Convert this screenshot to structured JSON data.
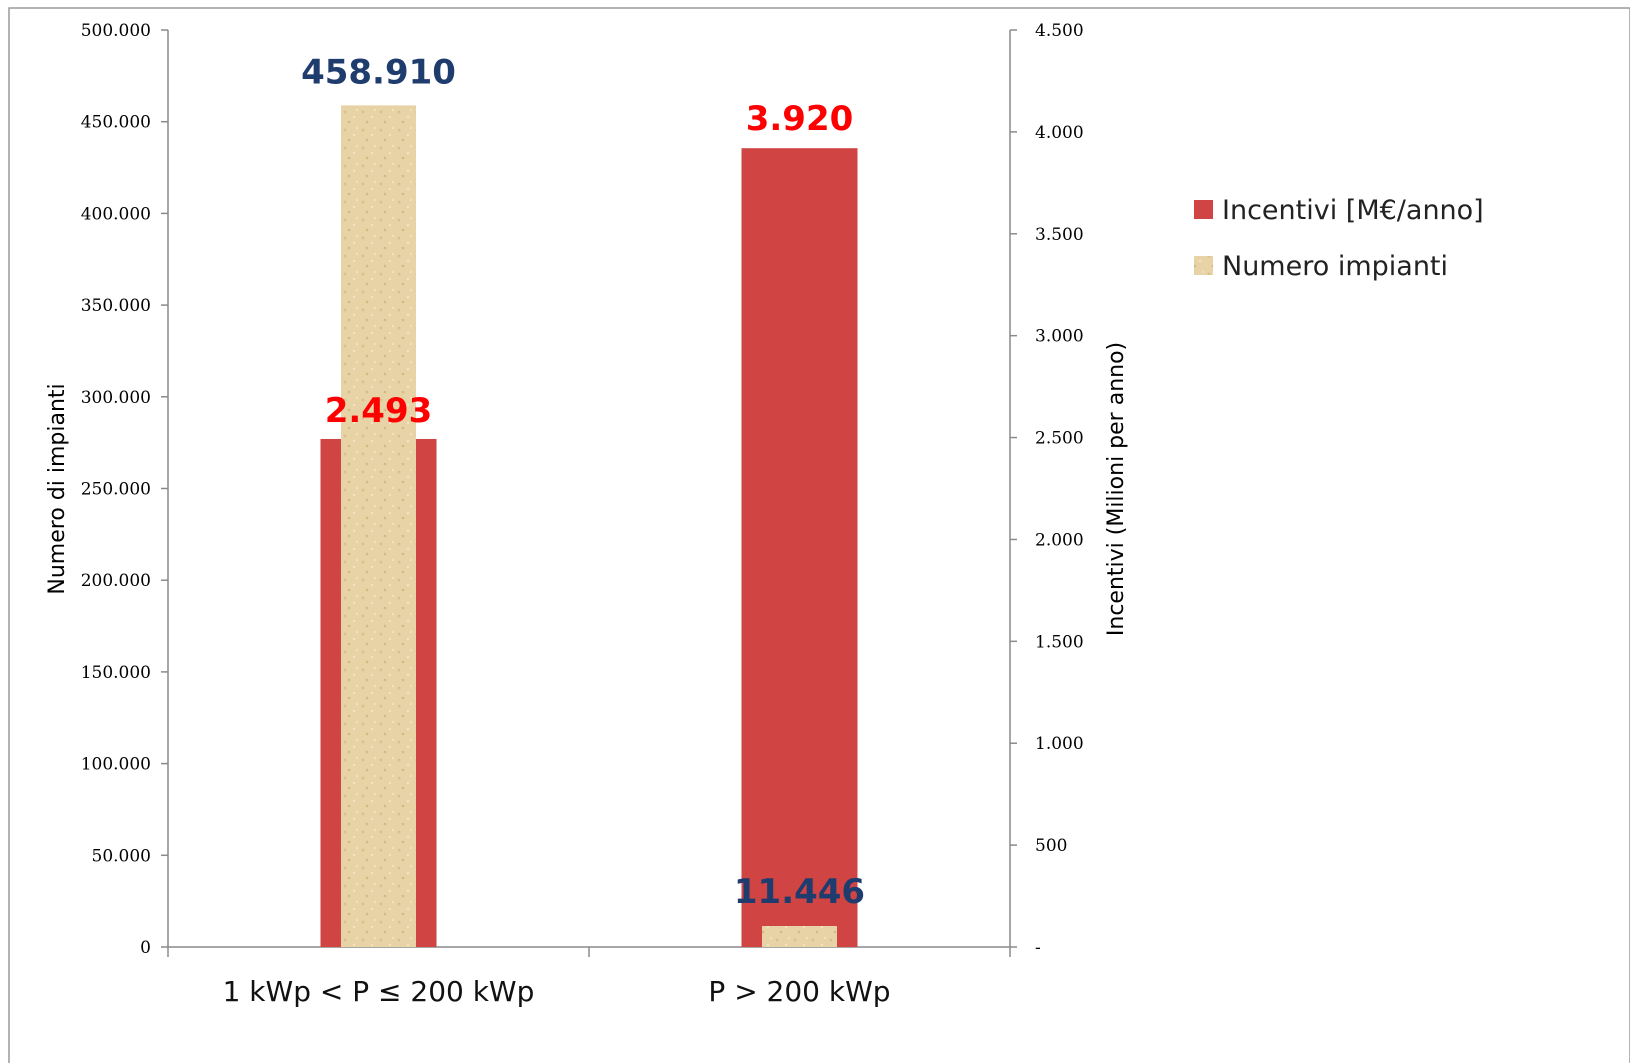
{
  "colors": {
    "incentivi": "#d04444",
    "numero": "#e8d3a6",
    "numero_label": "#1f3c6e",
    "incentivi_label": "#ff0000",
    "axis": "#8a8a8a",
    "title": "#3a6aa8"
  },
  "chart_data": {
    "type": "bar",
    "title": "",
    "categories": [
      "1 kWp < P ≤ 200 kWp",
      "P > 200 kWp"
    ],
    "ylabel_left": "Numero di impianti",
    "ylabel_right": "Incentivi (Milioni per anno)",
    "ylim_left": [
      0,
      500000
    ],
    "ylim_right": [
      0,
      4500
    ],
    "yticks_left": [
      "0",
      "50.000",
      "100.000",
      "150.000",
      "200.000",
      "250.000",
      "300.000",
      "350.000",
      "400.000",
      "450.000",
      "500.000"
    ],
    "yticks_right": [
      "-",
      "500",
      "1.000",
      "1.500",
      "2.000",
      "2.500",
      "3.000",
      "3.500",
      "4.000",
      "4.500"
    ],
    "series": [
      {
        "name": "Incentivi  [M€/anno]",
        "axis": "right",
        "values": [
          2493,
          3920
        ],
        "labels": [
          "2.493",
          "3.920"
        ]
      },
      {
        "name": "Numero impianti",
        "axis": "left",
        "values": [
          458910,
          11446
        ],
        "labels": [
          "458.910",
          "11.446"
        ]
      }
    ],
    "legend_position": "right",
    "grid": false
  }
}
